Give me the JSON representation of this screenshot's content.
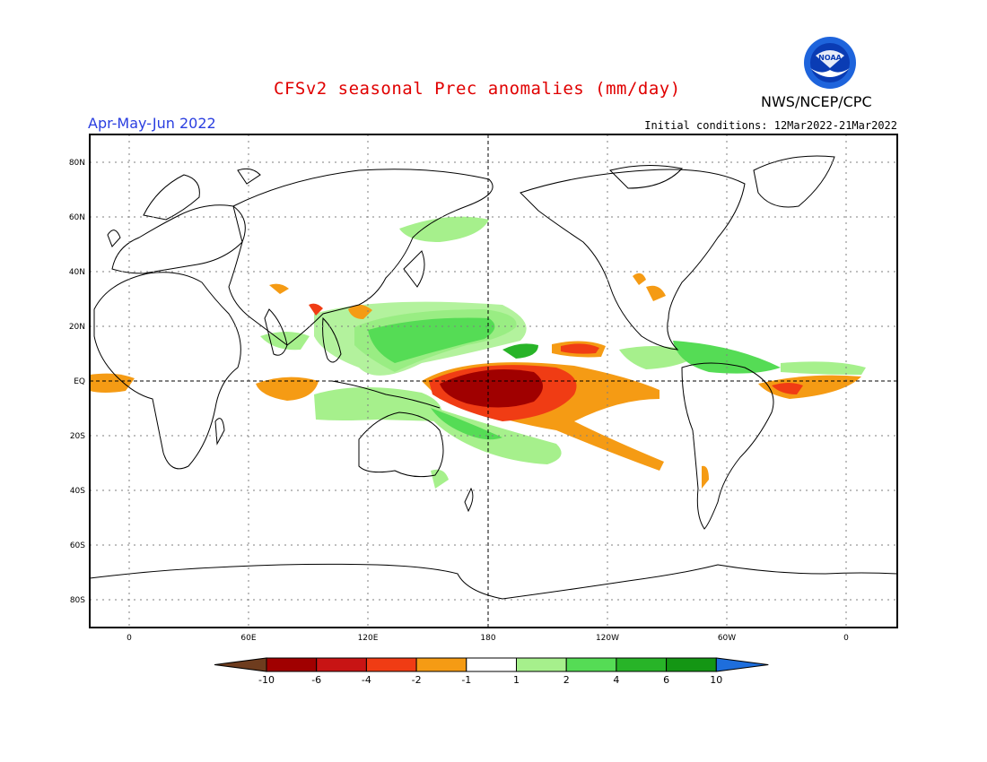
{
  "header": {
    "title": "CFSv2 seasonal Prec anomalies (mm/day)",
    "season": "Apr-May-Jun 2022",
    "initial_conditions": "Initial conditions: 12Mar2022-21Mar2022",
    "agency": "NWS/NCEP/CPC",
    "logo_text": "NOAA"
  },
  "map": {
    "projection": "equirectangular",
    "lon_ticks": [
      "0",
      "60E",
      "120E",
      "180",
      "120W",
      "60W",
      "0"
    ],
    "lat_ticks": [
      "80N",
      "60N",
      "40N",
      "20N",
      "EQ",
      "20S",
      "40S",
      "60S",
      "80S"
    ],
    "grid": true
  },
  "colorbar": {
    "labels": [
      "-10",
      "-6",
      "-4",
      "-2",
      "-1",
      "1",
      "2",
      "4",
      "6",
      "10"
    ],
    "colors": [
      "#6e3c1e",
      "#a00000",
      "#c81414",
      "#f03c14",
      "#f59b14",
      "#ffffff",
      "#a6f08c",
      "#55dc55",
      "#28b428",
      "#149614",
      "#1e6edc"
    ]
  }
}
